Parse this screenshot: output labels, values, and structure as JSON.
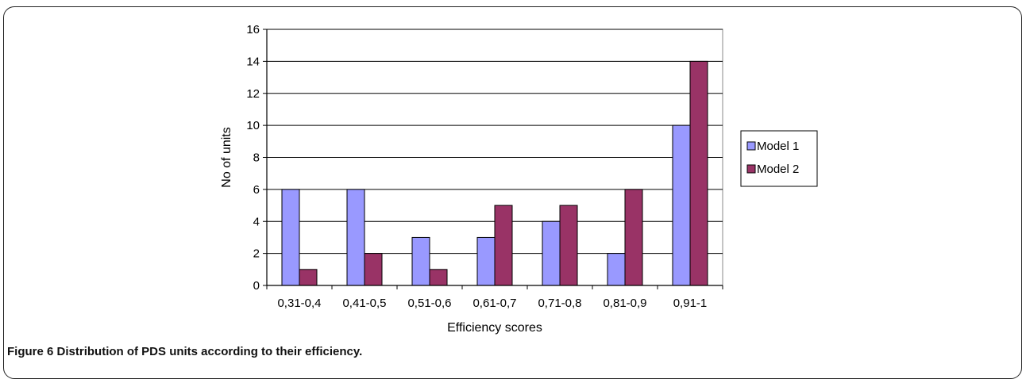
{
  "caption": {
    "label": "Figure 6",
    "text": "Distribution of PDS units according to their efficiency."
  },
  "chart_data": {
    "type": "bar",
    "title": "",
    "xlabel": "Efficiency scores",
    "ylabel": "No of units",
    "categories": [
      "0,31-0,4",
      "0,41-0,5",
      "0,51-0,6",
      "0,61-0,7",
      "0,71-0,8",
      "0,81-0,9",
      "0,91-1"
    ],
    "series": [
      {
        "name": "Model 1",
        "values": [
          6,
          6,
          3,
          3,
          4,
          2,
          10
        ],
        "color": "#9999ff"
      },
      {
        "name": "Model 2",
        "values": [
          1,
          2,
          1,
          5,
          5,
          6,
          14
        ],
        "color": "#993366"
      }
    ],
    "ylim": [
      0,
      16
    ],
    "yticks": [
      0,
      2,
      4,
      6,
      8,
      10,
      12,
      14,
      16
    ],
    "grid": true,
    "legend": "right"
  }
}
